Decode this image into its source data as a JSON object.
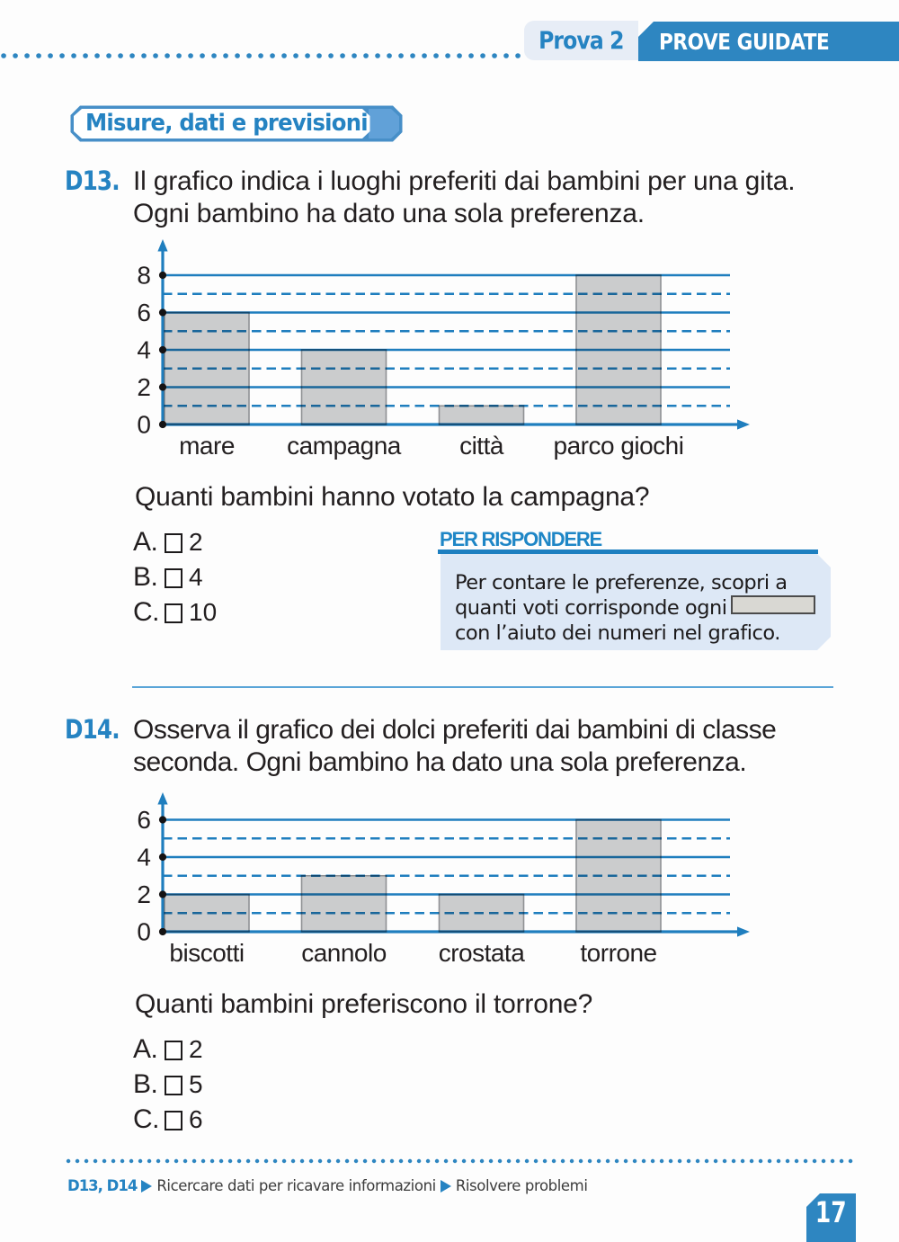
{
  "header": {
    "prova_label": "Prova 2",
    "banner": "PROVE GUIDATE"
  },
  "section_badge": "Misure, dati e previsioni",
  "exercises": [
    {
      "id": "D13.",
      "text_lines": [
        "Il grafico indica i luoghi preferiti dai bambini per una gita.",
        "Ogni bambino ha dato una sola preferenza."
      ],
      "question": "Quanti bambini hanno votato la campagna?",
      "options": [
        {
          "letter": "A.",
          "value": "2"
        },
        {
          "letter": "B.",
          "value": "4"
        },
        {
          "letter": "C.",
          "value": "10"
        }
      ]
    },
    {
      "id": "D14.",
      "text_lines": [
        "Osserva il grafico dei dolci preferiti dai bambini di classe",
        "seconda. Ogni bambino ha dato una sola preferenza."
      ],
      "question": "Quanti bambini preferiscono il torrone?",
      "options": [
        {
          "letter": "A.",
          "value": "2"
        },
        {
          "letter": "B.",
          "value": "5"
        },
        {
          "letter": "C.",
          "value": "6"
        }
      ]
    }
  ],
  "helper_box": {
    "title": "PER RISPONDERE",
    "line1": "Per contare le preferenze, scopri a",
    "line2": "quanti voti corrisponde ogni",
    "line3": "con l’aiuto dei numeri nel grafico."
  },
  "footer": {
    "exercise_ids": "D13, D14",
    "skill1": "Ricercare dati per ricavare informazioni",
    "skill2": "Risolvere problemi",
    "page_number": "17"
  },
  "chart_data": [
    {
      "type": "bar",
      "title": "",
      "xlabel": "",
      "ylabel": "",
      "categories": [
        "mare",
        "campagna",
        "città",
        "parco giochi"
      ],
      "values": [
        6,
        4,
        1,
        8
      ],
      "ylim": [
        0,
        8
      ],
      "yticks_solid": [
        0,
        2,
        4,
        6,
        8
      ],
      "yticks_dashed": [
        1,
        3,
        5,
        7
      ],
      "grid": true,
      "legend": false
    },
    {
      "type": "bar",
      "title": "",
      "xlabel": "",
      "ylabel": "",
      "categories": [
        "biscotti",
        "cannolo",
        "crostata",
        "torrone"
      ],
      "values": [
        2,
        3,
        2,
        6
      ],
      "ylim": [
        0,
        6
      ],
      "yticks_solid": [
        0,
        2,
        4,
        6
      ],
      "yticks_dashed": [
        1,
        3,
        5
      ],
      "grid": true,
      "legend": false
    }
  ],
  "colors": {
    "primary_blue": "#2e86c1",
    "text_blue": "#2583c2",
    "grid_blue": "#1f7fc0",
    "bar_fill": "#cbcccd",
    "bar_stroke": "#8f9194",
    "panel_bg": "#dde8f6",
    "chip_bg": "#e7edf6",
    "ink": "#231f20"
  }
}
